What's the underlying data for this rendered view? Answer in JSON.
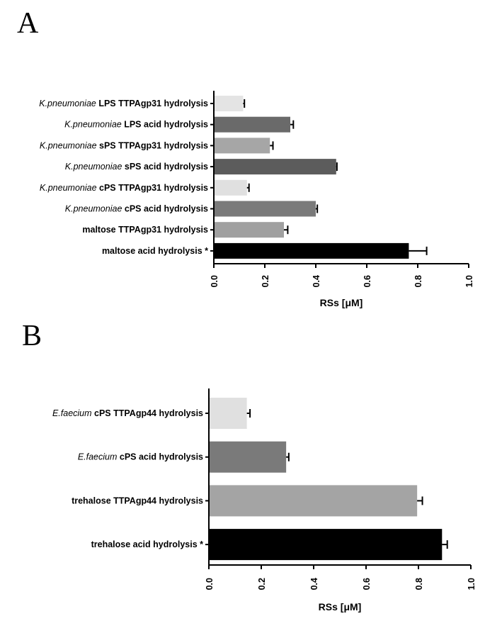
{
  "chart_data": [
    {
      "panel": "A",
      "type": "bar",
      "orientation": "horizontal",
      "xlabel": "RSs [μM]",
      "xlim": [
        0,
        1.0
      ],
      "xticks": [
        "0.0",
        "0.2",
        "0.4",
        "0.6",
        "0.8",
        "1.0"
      ],
      "grid": false,
      "categories": [
        {
          "italic": "K.pneumoniae",
          "bold": " LPS TTPAgp31 hydrolysis"
        },
        {
          "italic": "K.pneumoniae",
          "bold": " LPS acid hydrolysis"
        },
        {
          "italic": "K.pneumoniae",
          "bold": " sPS TTPAgp31 hydrolysis"
        },
        {
          "italic": "K.pneumoniae",
          "bold": " sPS acid  hydrolysis"
        },
        {
          "italic": "K.pneumoniae",
          "bold": " cPS TTPAgp31 hydrolysis"
        },
        {
          "italic": "K.pneumoniae",
          "bold": " cPS acid hydrolysis"
        },
        {
          "italic": "",
          "bold": "maltose TTPAgp31 hydrolysis"
        },
        {
          "italic": "",
          "bold": "maltose acid hydrolysis *"
        }
      ],
      "values": [
        0.115,
        0.3,
        0.22,
        0.48,
        0.13,
        0.4,
        0.275,
        0.765
      ],
      "errors": [
        0.005,
        0.012,
        0.012,
        0.003,
        0.008,
        0.006,
        0.015,
        0.07
      ],
      "colors": [
        "#e4e4e4",
        "#6a6a6a",
        "#a6a6a6",
        "#5c5c5c",
        "#e0e0e0",
        "#7a7a7a",
        "#a0a0a0",
        "#000000"
      ]
    },
    {
      "panel": "B",
      "type": "bar",
      "orientation": "horizontal",
      "xlabel": "RSs [μM]",
      "xlim": [
        0,
        1.0
      ],
      "xticks": [
        "0.0",
        "0.2",
        "0.4",
        "0.6",
        "0.8",
        "1.0"
      ],
      "grid": false,
      "categories": [
        {
          "italic": "E.faecium",
          "bold": " cPS TTPAgp44  hydrolysis"
        },
        {
          "italic": "E.faecium",
          "bold": " cPS acid hydrolysis"
        },
        {
          "italic": "",
          "bold": "trehalose TTPAgp44 hydrolysis"
        },
        {
          "italic": "",
          "bold": "trehalose acid hydrolysis *"
        }
      ],
      "values": [
        0.145,
        0.295,
        0.795,
        0.89
      ],
      "errors": [
        0.012,
        0.01,
        0.02,
        0.02
      ],
      "colors": [
        "#e0e0e0",
        "#7a7a7a",
        "#a4a4a4",
        "#000000"
      ]
    }
  ]
}
